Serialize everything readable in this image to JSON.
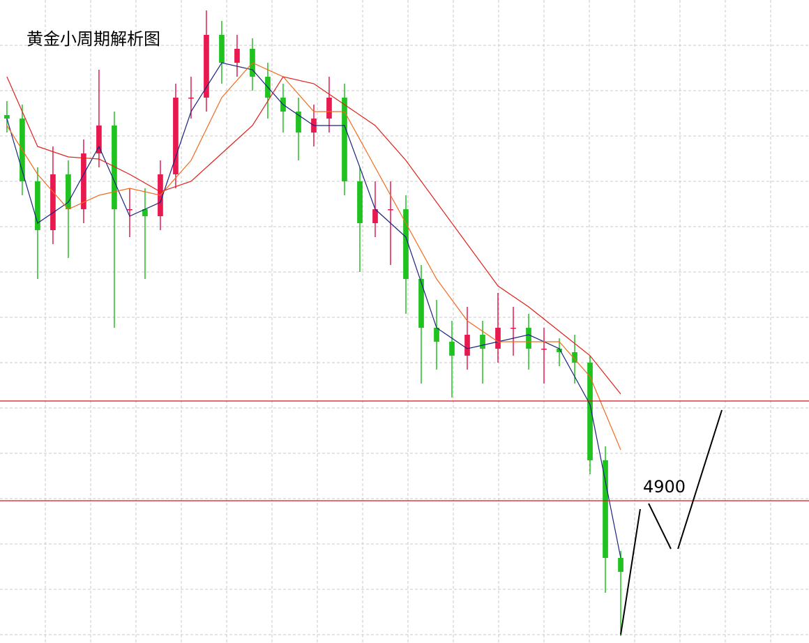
{
  "chart_data": {
    "type": "candlestick",
    "title": "黄金小周期解析图",
    "xlim": [
      -0.45,
      52.27
    ],
    "ylim": [
      4696,
      5618
    ],
    "grid": true,
    "up_color": "#e8194f",
    "down_color": "#1fc21f",
    "open": [
      5453,
      5448,
      5358,
      5288,
      5368,
      5318,
      5398,
      5438,
      5318,
      5318,
      5308,
      5368,
      5478,
      5478,
      5568,
      5528,
      5548,
      5508,
      5478,
      5458,
      5428,
      5448,
      5478,
      5358,
      5298,
      5318,
      5318,
      5218,
      5148,
      5128,
      5108,
      5138,
      5118,
      5148,
      5148,
      5118,
      5118,
      5113,
      5098,
      4958,
      4818
    ],
    "high": [
      5473,
      5468,
      5378,
      5408,
      5388,
      5418,
      5518,
      5458,
      5348,
      5348,
      5388,
      5498,
      5508,
      5603,
      5588,
      5568,
      5563,
      5528,
      5498,
      5478,
      5468,
      5508,
      5498,
      5378,
      5358,
      5358,
      5338,
      5238,
      5188,
      5158,
      5178,
      5158,
      5198,
      5178,
      5168,
      5148,
      5133,
      5138,
      5108,
      4978,
      4828
    ],
    "low": [
      5428,
      5338,
      5218,
      5268,
      5248,
      5298,
      5378,
      5148,
      5278,
      5218,
      5288,
      5348,
      5448,
      5458,
      5498,
      5508,
      5488,
      5448,
      5428,
      5388,
      5408,
      5428,
      5338,
      5228,
      5278,
      5238,
      5168,
      5068,
      5088,
      5048,
      5088,
      5068,
      5098,
      5108,
      5088,
      5068,
      5093,
      5068,
      4938,
      4768,
      4706
    ],
    "close": [
      5448,
      5358,
      5288,
      5368,
      5318,
      5398,
      5438,
      5318,
      5318,
      5308,
      5368,
      5478,
      5478,
      5568,
      5528,
      5548,
      5508,
      5478,
      5458,
      5428,
      5448,
      5478,
      5358,
      5298,
      5318,
      5318,
      5218,
      5148,
      5128,
      5108,
      5138,
      5118,
      5148,
      5148,
      5118,
      5118,
      5113,
      5098,
      4958,
      4818,
      4798
    ],
    "lines": [
      {
        "color": "#1a237e",
        "x": [
          0,
          2,
          4,
          6,
          8,
          10,
          12,
          14,
          16,
          18,
          20,
          22,
          24,
          26,
          28,
          30,
          32,
          34,
          36,
          38,
          40
        ],
        "values": [
          5448,
          5298,
          5328,
          5408,
          5308,
          5328,
          5458,
          5528,
          5518,
          5468,
          5438,
          5438,
          5318,
          5278,
          5148,
          5118,
          5128,
          5138,
          5118,
          5038,
          4818
        ]
      },
      {
        "color": "#f26b1d",
        "x": [
          0,
          2,
          4,
          6,
          8,
          10,
          12,
          14,
          16,
          18,
          20,
          22,
          24,
          26,
          28,
          30,
          32,
          34,
          36,
          38,
          40
        ],
        "values": [
          5438,
          5368,
          5318,
          5338,
          5348,
          5338,
          5388,
          5478,
          5528,
          5508,
          5458,
          5458,
          5378,
          5298,
          5218,
          5158,
          5128,
          5128,
          5128,
          5078,
          4973
        ]
      },
      {
        "color": "#e0201a",
        "x": [
          0,
          2,
          4,
          6,
          8,
          10,
          12,
          14,
          16,
          18,
          20,
          22,
          24,
          26,
          28,
          30,
          32,
          34,
          36,
          38,
          40
        ],
        "values": [
          5508,
          5408,
          5393,
          5390,
          5368,
          5343,
          5358,
          5398,
          5438,
          5508,
          5498,
          5468,
          5438,
          5388,
          5328,
          5268,
          5208,
          5178,
          5143,
          5108,
          5053
        ]
      }
    ],
    "levels": [
      5043,
      4900
    ],
    "level_color": "#d4141e",
    "projection": {
      "color": "#000000",
      "x": [
        40,
        41.27,
        null,
        41.82,
        43.27,
        null,
        43.73,
        46.59
      ],
      "values": [
        4708,
        4888,
        null,
        4896,
        4831,
        null,
        4831,
        5030
      ]
    }
  }
}
